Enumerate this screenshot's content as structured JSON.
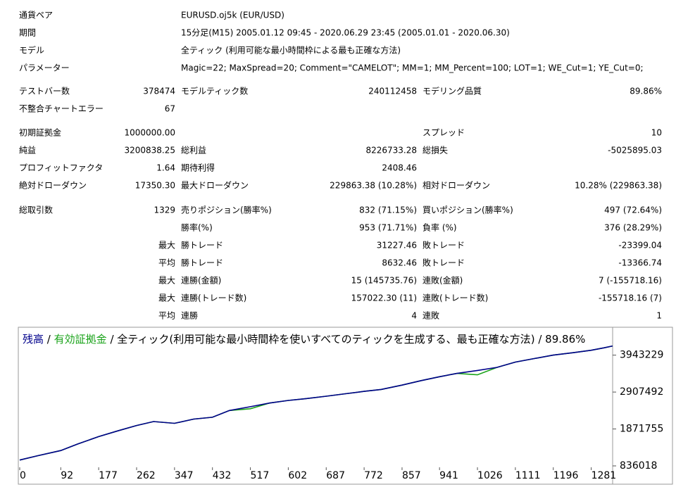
{
  "report": {
    "info": [
      {
        "label": "通貨ペア",
        "value": "EURUSD.oj5k (EUR/USD)"
      },
      {
        "label": "期間",
        "value": "15分足(M15) 2005.01.12 09:45 - 2020.06.29 23:45 (2005.01.01 - 2020.06.30)"
      },
      {
        "label": "モデル",
        "value": "全ティック (利用可能な最小時間枠による最も正確な方法)"
      },
      {
        "label": "パラメーター",
        "value": "Magic=22; MaxSpread=20; Comment=\"CAMELOT\"; MM=1; MM_Percent=100; LOT=1; WE_Cut=1; YE_Cut=0;"
      }
    ],
    "stats": [
      [
        "テストバー数",
        "378474",
        "モデルティック数",
        "240112458",
        "モデリング品質",
        "89.86%"
      ],
      [
        "不整合チャートエラー",
        "67",
        null,
        null,
        null,
        null
      ],
      [
        "初期証拠金",
        "1000000.00",
        null,
        null,
        "スプレッド",
        "10"
      ],
      [
        "純益",
        "3200838.25",
        "総利益",
        "8226733.28",
        "総損失",
        "-5025895.03"
      ],
      [
        "プロフィットファクタ",
        "1.64",
        "期待利得",
        "2408.46",
        null,
        null
      ],
      [
        "絶対ドローダウン",
        "17350.30",
        "最大ドローダウン",
        "229863.38 (10.28%)",
        "相対ドローダウン",
        "10.28% (229863.38)"
      ],
      [
        "総取引数",
        "1329",
        "売りポジション(勝率%)",
        "832 (71.15%)",
        "買いポジション(勝率%)",
        "497 (72.64%)"
      ],
      [
        null,
        null,
        "勝率(%)",
        "953 (71.71%)",
        "負率 (%)",
        "376 (28.29%)"
      ],
      [
        null,
        "最大",
        "勝トレード",
        "31227.46",
        "敗トレード",
        "-23399.04"
      ],
      [
        null,
        "平均",
        "勝トレード",
        "8632.46",
        "敗トレード",
        "-13366.74"
      ],
      [
        null,
        "最大",
        "連勝(金額)",
        "15 (145735.76)",
        "連敗(金額)",
        "7 (-155718.16)"
      ],
      [
        null,
        "最大",
        "連勝(トレード数)",
        "157022.30 (11)",
        "連敗(トレード数)",
        "-155718.16 (7)"
      ],
      [
        null,
        "平均",
        "連勝",
        "4",
        "連敗",
        "1"
      ]
    ]
  },
  "chart_data": {
    "type": "line",
    "separator": "/",
    "title": "全ティック(利用可能な最小時間枠を使いすべてのティックを生成する、最も正確な方法)",
    "quality": "89.86%",
    "x": [
      0,
      40,
      92,
      130,
      177,
      220,
      262,
      300,
      347,
      390,
      432,
      470,
      517,
      560,
      602,
      640,
      687,
      730,
      772,
      810,
      857,
      900,
      941,
      980,
      1026,
      1070,
      1111,
      1150,
      1196,
      1240,
      1281,
      1310,
      1329
    ],
    "series": [
      {
        "name": "残高",
        "color": "#00008b",
        "values": [
          1000000,
          1120000,
          1266000,
          1450000,
          1657000,
          1820000,
          1970000,
          2080000,
          2030000,
          2150000,
          2200000,
          2390000,
          2497000,
          2600000,
          2673000,
          2720000,
          2790000,
          2860000,
          2927000,
          2980000,
          3103000,
          3230000,
          3337000,
          3430000,
          3513000,
          3600000,
          3748000,
          3840000,
          3943000,
          4010000,
          4080000,
          4150000,
          4200838
        ]
      },
      {
        "name": "有効証拠金",
        "color": "#1aa31a",
        "values": [
          1000000,
          1120000,
          1266000,
          1450000,
          1657000,
          1820000,
          1970000,
          2080000,
          2030000,
          2150000,
          2200000,
          2390000,
          2440000,
          2600000,
          2673000,
          2720000,
          2790000,
          2860000,
          2927000,
          2980000,
          3103000,
          3230000,
          3337000,
          3430000,
          3390000,
          3600000,
          3748000,
          3840000,
          3943000,
          4010000,
          4080000,
          4150000,
          4200838
        ]
      }
    ],
    "xlim": [
      0,
      1329
    ],
    "xticks": [
      0,
      92,
      177,
      262,
      347,
      432,
      517,
      602,
      687,
      772,
      857,
      941,
      1026,
      1111,
      1196,
      1281
    ],
    "ylim": [
      836018,
      4627000
    ],
    "yticks": [
      836018,
      1871755,
      2907492,
      3943229
    ]
  }
}
